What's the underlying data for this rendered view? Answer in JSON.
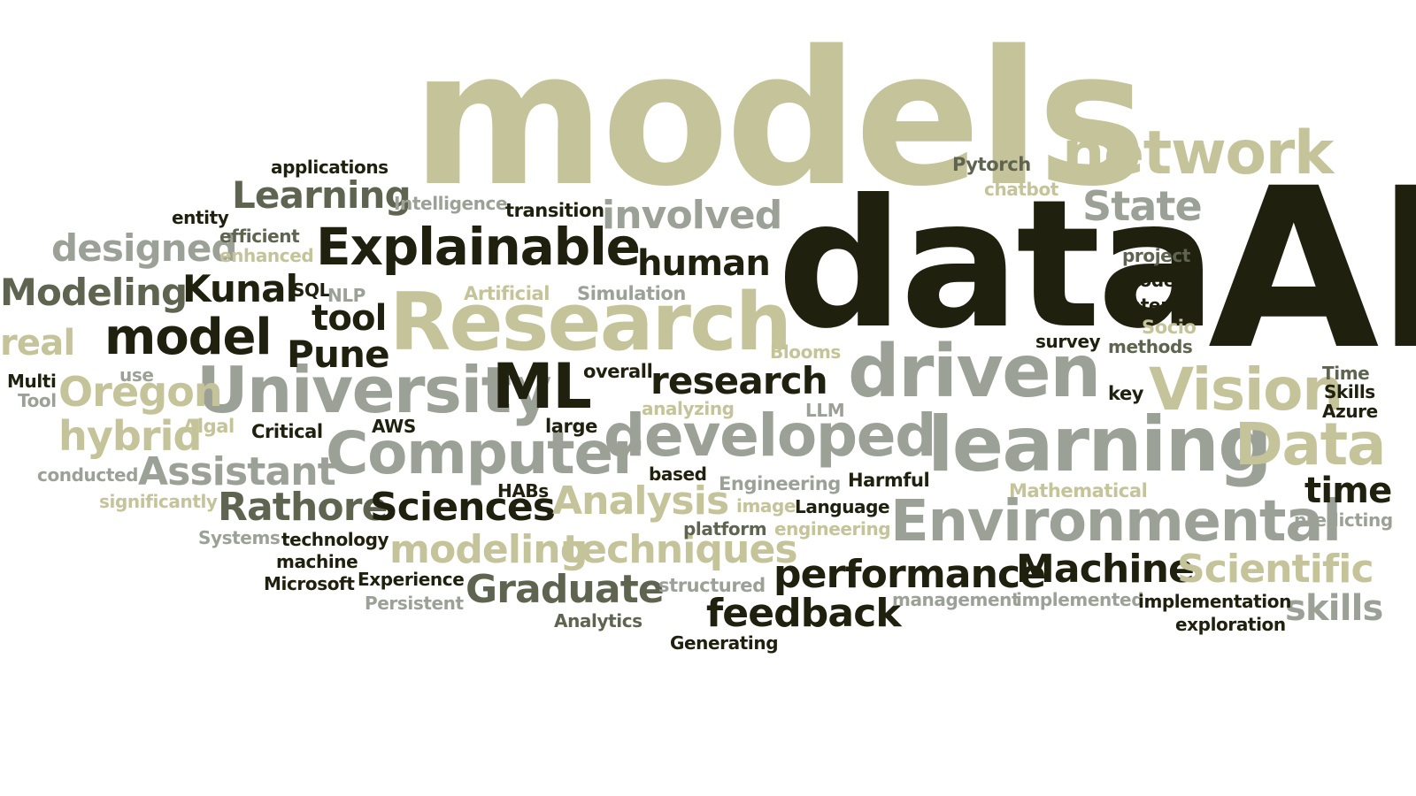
{
  "cloud": {
    "words": [
      "models",
      "data",
      "AI",
      "network",
      "Research",
      "driven",
      "learning",
      "University",
      "Computer",
      "developed",
      "Vision",
      "Data",
      "Environmental",
      "Explainable",
      "human",
      "Learning",
      "involved",
      "State",
      "designed",
      "Modeling",
      "Kunal",
      "model",
      "tool",
      "Pune",
      "ML",
      "research",
      "Oregon",
      "hybrid",
      "Assistant",
      "Rathore",
      "Sciences",
      "Analysis",
      "modeling",
      "techniques",
      "Graduate",
      "performance",
      "Machine",
      "Scientific",
      "feedback",
      "time",
      "skills",
      "real",
      "Pytorch",
      "chatbot",
      "applications",
      "entity",
      "efficient",
      "enhanced",
      "Intelligence",
      "transition",
      "SQL",
      "NLP",
      "Artificial",
      "Simulation",
      "project",
      "Models",
      "Intern",
      "Socio",
      "survey",
      "methods",
      "Blooms",
      "use",
      "overall",
      "Multi",
      "Tool",
      "key",
      "Time",
      "Skills",
      "Azure",
      "analyzing",
      "LLM",
      "AWS",
      "large",
      "Algal",
      "Critical",
      "conducted",
      "based",
      "Engineering",
      "Harmful",
      "Mathematical",
      "HABs",
      "significantly",
      "image",
      "Language",
      "predicting",
      "Systems",
      "technology",
      "platform",
      "engineering",
      "machine",
      "Microsoft",
      "Experience",
      "structured",
      "Persistent",
      "management",
      "implemented",
      "implementation",
      "Analytics",
      "exploration",
      "Generating"
    ]
  }
}
